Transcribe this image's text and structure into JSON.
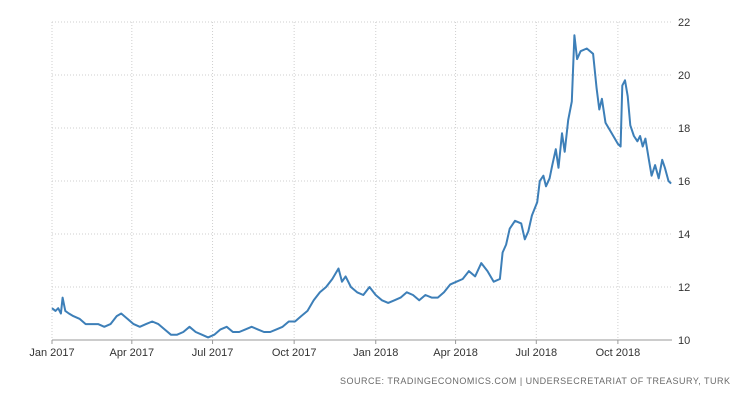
{
  "source_text": "SOURCE: TRADINGECONOMICS.COM  |  UNDERSECRETARIAT OF TREASURY, TURKEY",
  "colors": {
    "line": "#3d7fb8",
    "grid": "#cfcfcf",
    "axis": "#999999",
    "text": "#333333"
  },
  "chart_data": {
    "type": "line",
    "title": "",
    "xlabel": "",
    "ylabel": "",
    "ylim": [
      10,
      22
    ],
    "y_ticks": [
      10,
      12,
      14,
      16,
      18,
      20,
      22
    ],
    "x_ticks": [
      {
        "date": "2017-01-01",
        "label": "Jan 2017"
      },
      {
        "date": "2017-04-01",
        "label": "Apr 2017"
      },
      {
        "date": "2017-07-01",
        "label": "Jul 2017"
      },
      {
        "date": "2017-10-01",
        "label": "Oct 2017"
      },
      {
        "date": "2018-01-01",
        "label": "Jan 2018"
      },
      {
        "date": "2018-04-01",
        "label": "Apr 2018"
      },
      {
        "date": "2018-07-01",
        "label": "Jul 2018"
      },
      {
        "date": "2018-10-01",
        "label": "Oct 2018"
      }
    ],
    "grid": true,
    "y_axis_side": "right",
    "series": [
      {
        "points": [
          [
            "2017-01-01",
            11.2
          ],
          [
            "2017-01-05",
            11.1
          ],
          [
            "2017-01-08",
            11.2
          ],
          [
            "2017-01-11",
            11.0
          ],
          [
            "2017-01-13",
            11.6
          ],
          [
            "2017-01-16",
            11.1
          ],
          [
            "2017-01-20",
            11.0
          ],
          [
            "2017-01-25",
            10.9
          ],
          [
            "2017-02-01",
            10.8
          ],
          [
            "2017-02-08",
            10.6
          ],
          [
            "2017-02-15",
            10.6
          ],
          [
            "2017-02-22",
            10.6
          ],
          [
            "2017-03-01",
            10.5
          ],
          [
            "2017-03-08",
            10.6
          ],
          [
            "2017-03-15",
            10.9
          ],
          [
            "2017-03-20",
            11.0
          ],
          [
            "2017-03-27",
            10.8
          ],
          [
            "2017-04-03",
            10.6
          ],
          [
            "2017-04-10",
            10.5
          ],
          [
            "2017-04-17",
            10.6
          ],
          [
            "2017-04-24",
            10.7
          ],
          [
            "2017-05-01",
            10.6
          ],
          [
            "2017-05-08",
            10.4
          ],
          [
            "2017-05-15",
            10.2
          ],
          [
            "2017-05-22",
            10.2
          ],
          [
            "2017-05-29",
            10.3
          ],
          [
            "2017-06-05",
            10.5
          ],
          [
            "2017-06-12",
            10.3
          ],
          [
            "2017-06-19",
            10.2
          ],
          [
            "2017-06-26",
            10.1
          ],
          [
            "2017-07-03",
            10.2
          ],
          [
            "2017-07-10",
            10.4
          ],
          [
            "2017-07-17",
            10.5
          ],
          [
            "2017-07-24",
            10.3
          ],
          [
            "2017-07-31",
            10.3
          ],
          [
            "2017-08-07",
            10.4
          ],
          [
            "2017-08-14",
            10.5
          ],
          [
            "2017-08-21",
            10.4
          ],
          [
            "2017-08-28",
            10.3
          ],
          [
            "2017-09-04",
            10.3
          ],
          [
            "2017-09-11",
            10.4
          ],
          [
            "2017-09-18",
            10.5
          ],
          [
            "2017-09-25",
            10.7
          ],
          [
            "2017-10-02",
            10.7
          ],
          [
            "2017-10-09",
            10.9
          ],
          [
            "2017-10-16",
            11.1
          ],
          [
            "2017-10-23",
            11.5
          ],
          [
            "2017-10-30",
            11.8
          ],
          [
            "2017-11-06",
            12.0
          ],
          [
            "2017-11-13",
            12.3
          ],
          [
            "2017-11-20",
            12.7
          ],
          [
            "2017-11-24",
            12.2
          ],
          [
            "2017-11-28",
            12.4
          ],
          [
            "2017-12-04",
            12.0
          ],
          [
            "2017-12-11",
            11.8
          ],
          [
            "2017-12-18",
            11.7
          ],
          [
            "2017-12-25",
            12.0
          ],
          [
            "2018-01-01",
            11.7
          ],
          [
            "2018-01-08",
            11.5
          ],
          [
            "2018-01-15",
            11.4
          ],
          [
            "2018-01-22",
            11.5
          ],
          [
            "2018-01-29",
            11.6
          ],
          [
            "2018-02-05",
            11.8
          ],
          [
            "2018-02-12",
            11.7
          ],
          [
            "2018-02-19",
            11.5
          ],
          [
            "2018-02-26",
            11.7
          ],
          [
            "2018-03-05",
            11.6
          ],
          [
            "2018-03-12",
            11.6
          ],
          [
            "2018-03-19",
            11.8
          ],
          [
            "2018-03-26",
            12.1
          ],
          [
            "2018-04-02",
            12.2
          ],
          [
            "2018-04-09",
            12.3
          ],
          [
            "2018-04-16",
            12.6
          ],
          [
            "2018-04-23",
            12.4
          ],
          [
            "2018-04-30",
            12.9
          ],
          [
            "2018-05-07",
            12.6
          ],
          [
            "2018-05-14",
            12.2
          ],
          [
            "2018-05-21",
            12.3
          ],
          [
            "2018-05-24",
            13.3
          ],
          [
            "2018-05-28",
            13.6
          ],
          [
            "2018-06-01",
            14.2
          ],
          [
            "2018-06-07",
            14.5
          ],
          [
            "2018-06-14",
            14.4
          ],
          [
            "2018-06-18",
            13.8
          ],
          [
            "2018-06-22",
            14.1
          ],
          [
            "2018-06-26",
            14.7
          ],
          [
            "2018-07-02",
            15.2
          ],
          [
            "2018-07-05",
            16.0
          ],
          [
            "2018-07-09",
            16.2
          ],
          [
            "2018-07-12",
            15.8
          ],
          [
            "2018-07-16",
            16.1
          ],
          [
            "2018-07-19",
            16.6
          ],
          [
            "2018-07-23",
            17.2
          ],
          [
            "2018-07-26",
            16.5
          ],
          [
            "2018-07-30",
            17.8
          ],
          [
            "2018-08-02",
            17.1
          ],
          [
            "2018-08-06",
            18.3
          ],
          [
            "2018-08-10",
            19.0
          ],
          [
            "2018-08-13",
            21.5
          ],
          [
            "2018-08-16",
            20.6
          ],
          [
            "2018-08-20",
            20.9
          ],
          [
            "2018-08-27",
            21.0
          ],
          [
            "2018-09-03",
            20.8
          ],
          [
            "2018-09-07",
            19.5
          ],
          [
            "2018-09-10",
            18.7
          ],
          [
            "2018-09-13",
            19.1
          ],
          [
            "2018-09-17",
            18.2
          ],
          [
            "2018-09-24",
            17.8
          ],
          [
            "2018-10-01",
            17.4
          ],
          [
            "2018-10-04",
            17.3
          ],
          [
            "2018-10-06",
            19.6
          ],
          [
            "2018-10-09",
            19.8
          ],
          [
            "2018-10-12",
            19.2
          ],
          [
            "2018-10-15",
            18.1
          ],
          [
            "2018-10-19",
            17.7
          ],
          [
            "2018-10-23",
            17.5
          ],
          [
            "2018-10-26",
            17.7
          ],
          [
            "2018-10-29",
            17.3
          ],
          [
            "2018-11-01",
            17.6
          ],
          [
            "2018-11-05",
            16.8
          ],
          [
            "2018-11-08",
            16.2
          ],
          [
            "2018-11-12",
            16.6
          ],
          [
            "2018-11-16",
            16.1
          ],
          [
            "2018-11-20",
            16.8
          ],
          [
            "2018-11-23",
            16.5
          ],
          [
            "2018-11-27",
            16.0
          ],
          [
            "2018-11-30",
            15.9
          ]
        ]
      }
    ]
  }
}
